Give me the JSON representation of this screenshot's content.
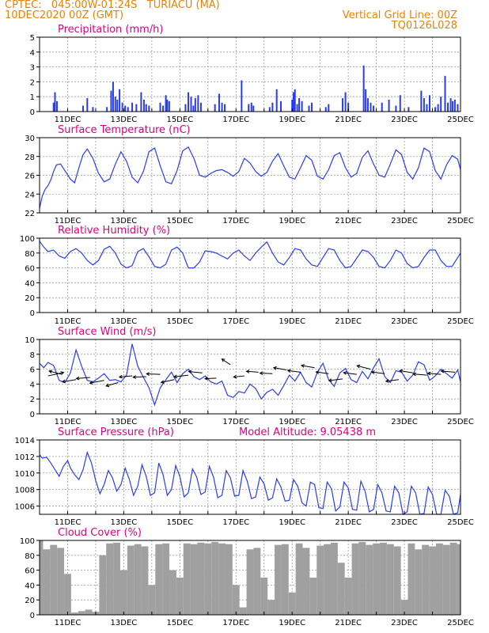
{
  "header": {
    "line1": "CPTEC:   045:00W-01:24S   TURIACU (MA)",
    "line2": "10DEC2020 00Z (GMT)",
    "grid_note": "Vertical Grid Line: 00Z",
    "model_id": "TQ0126L028"
  },
  "colors": {
    "header": "#f08000",
    "panel_title": "#e0007f",
    "series": "#2a3cf0",
    "cloud": "#a0a0a0",
    "grid": "#9a9a9a"
  },
  "x_axis": {
    "start_day": 10,
    "end_day": 25,
    "tick_labels": [
      "11DEC",
      "13DEC",
      "15DEC",
      "17DEC",
      "19DEC",
      "21DEC",
      "23DEC",
      "25DEC"
    ]
  },
  "chart_data": [
    {
      "type": "bar",
      "id": "precipitation",
      "title": "Precipitation (mm/h)",
      "ylim": [
        0,
        5
      ],
      "yticks": [
        0,
        1,
        2,
        3,
        4,
        5
      ],
      "x": [
        10.5,
        10.55,
        10.62,
        11.55,
        11.7,
        11.9,
        12.4,
        12.55,
        12.62,
        12.7,
        12.77,
        12.85,
        12.95,
        13.05,
        13.15,
        13.3,
        13.45,
        13.62,
        13.72,
        13.8,
        13.9,
        14.3,
        14.4,
        14.5,
        14.55,
        14.62,
        15.2,
        15.3,
        15.4,
        15.48,
        15.55,
        15.65,
        15.75,
        16.25,
        16.4,
        16.5,
        16.6,
        17.2,
        17.45,
        17.55,
        17.62,
        18.2,
        18.3,
        18.45,
        18.6,
        19.0,
        19.05,
        19.1,
        19.18,
        19.25,
        19.35,
        19.6,
        19.7,
        20.2,
        20.3,
        20.8,
        20.9,
        21.0,
        21.55,
        21.62,
        21.7,
        21.8,
        21.9,
        22.2,
        22.45,
        22.7,
        22.85,
        23.15,
        23.6,
        23.7,
        23.8,
        23.9,
        24.1,
        24.2,
        24.3,
        24.45,
        24.55,
        24.65,
        24.72,
        24.8,
        24.9
      ],
      "values": [
        0.6,
        1.3,
        0.7,
        0.4,
        0.9,
        0.3,
        0.3,
        1.4,
        2.0,
        1.0,
        0.8,
        1.5,
        0.6,
        0.4,
        0.3,
        0.6,
        0.5,
        1.3,
        0.8,
        0.5,
        0.4,
        0.6,
        0.4,
        1.1,
        0.8,
        0.7,
        0.5,
        1.3,
        1.0,
        0.4,
        0.9,
        1.1,
        0.6,
        0.5,
        1.2,
        0.6,
        0.5,
        2.1,
        0.5,
        0.6,
        0.4,
        0.3,
        0.6,
        1.5,
        0.7,
        0.8,
        1.3,
        1.5,
        0.5,
        0.9,
        0.7,
        0.4,
        0.6,
        0.3,
        0.5,
        0.9,
        1.3,
        0.6,
        3.1,
        1.5,
        0.9,
        0.6,
        0.4,
        0.6,
        0.8,
        0.4,
        1.1,
        0.3,
        1.4,
        0.9,
        0.5,
        1.1,
        0.3,
        0.5,
        1.0,
        2.4,
        0.6,
        0.9,
        0.7,
        0.8,
        0.5
      ]
    },
    {
      "type": "line",
      "id": "temperature",
      "title": "Surface Temperature (nC)",
      "ylim": [
        22,
        30
      ],
      "yticks": [
        22,
        24,
        26,
        28,
        30
      ],
      "x": [
        10.0,
        10.1,
        10.2,
        10.3,
        10.4,
        10.5,
        10.6,
        10.75,
        10.9,
        11.1,
        11.25,
        11.4,
        11.55,
        11.7,
        11.9,
        12.1,
        12.3,
        12.5,
        12.7,
        12.9,
        13.1,
        13.3,
        13.5,
        13.7,
        13.9,
        14.1,
        14.3,
        14.5,
        14.7,
        14.9,
        15.1,
        15.3,
        15.5,
        15.7,
        15.9,
        16.1,
        16.3,
        16.5,
        16.7,
        16.9,
        17.1,
        17.3,
        17.5,
        17.7,
        17.9,
        18.1,
        18.3,
        18.5,
        18.7,
        18.9,
        19.1,
        19.3,
        19.5,
        19.7,
        19.9,
        20.1,
        20.3,
        20.5,
        20.7,
        20.9,
        21.1,
        21.3,
        21.5,
        21.7,
        21.9,
        22.1,
        22.3,
        22.5,
        22.7,
        22.9,
        23.1,
        23.3,
        23.5,
        23.7,
        23.9,
        24.1,
        24.3,
        24.5,
        24.7,
        24.9,
        25.0
      ],
      "values": [
        22.5,
        23.8,
        24.5,
        24.9,
        25.5,
        26.4,
        27.1,
        27.2,
        26.5,
        25.6,
        25.2,
        26.8,
        28.2,
        28.8,
        27.8,
        26.2,
        25.3,
        25.6,
        27.2,
        28.5,
        27.5,
        25.8,
        25.2,
        26.4,
        28.5,
        28.9,
        27.0,
        25.3,
        25.1,
        26.5,
        28.6,
        29.0,
        27.8,
        26.0,
        25.8,
        26.2,
        26.5,
        26.6,
        26.3,
        25.9,
        26.4,
        27.8,
        27.3,
        26.4,
        25.9,
        26.3,
        27.5,
        28.3,
        27.0,
        25.8,
        25.6,
        26.8,
        28.1,
        27.6,
        25.9,
        25.6,
        26.6,
        28.1,
        28.4,
        26.8,
        25.8,
        26.2,
        27.9,
        28.6,
        27.2,
        26.0,
        25.8,
        27.2,
        28.7,
        28.2,
        26.3,
        25.6,
        26.8,
        28.9,
        28.5,
        26.5,
        25.6,
        27.1,
        28.1,
        27.7,
        26.6
      ]
    },
    {
      "type": "line",
      "id": "humidity",
      "title": "Relative Humidity (%)",
      "ylim": [
        0,
        100
      ],
      "yticks": [
        0,
        20,
        40,
        60,
        80,
        100
      ],
      "x": [
        10.0,
        10.15,
        10.3,
        10.5,
        10.7,
        10.9,
        11.1,
        11.3,
        11.5,
        11.7,
        11.9,
        12.1,
        12.3,
        12.5,
        12.7,
        12.9,
        13.1,
        13.3,
        13.5,
        13.7,
        13.9,
        14.1,
        14.3,
        14.5,
        14.7,
        14.9,
        15.1,
        15.3,
        15.5,
        15.7,
        15.9,
        16.1,
        16.3,
        16.5,
        16.7,
        16.9,
        17.1,
        17.3,
        17.5,
        17.7,
        17.9,
        18.1,
        18.3,
        18.5,
        18.7,
        18.9,
        19.1,
        19.3,
        19.5,
        19.7,
        19.9,
        20.1,
        20.3,
        20.5,
        20.7,
        20.9,
        21.1,
        21.3,
        21.5,
        21.7,
        21.9,
        22.1,
        22.3,
        22.5,
        22.7,
        22.9,
        23.1,
        23.3,
        23.5,
        23.7,
        23.9,
        24.1,
        24.3,
        24.5,
        24.7,
        24.9,
        25.0
      ],
      "values": [
        96,
        88,
        82,
        84,
        76,
        73,
        82,
        86,
        80,
        70,
        64,
        70,
        85,
        89,
        80,
        65,
        60,
        63,
        82,
        86,
        75,
        62,
        60,
        65,
        84,
        88,
        80,
        60,
        60,
        68,
        83,
        82,
        80,
        76,
        72,
        80,
        84,
        76,
        70,
        80,
        88,
        95,
        80,
        68,
        64,
        74,
        86,
        84,
        72,
        64,
        62,
        74,
        86,
        84,
        70,
        60,
        62,
        73,
        84,
        82,
        74,
        62,
        60,
        70,
        84,
        80,
        66,
        60,
        62,
        74,
        84,
        84,
        70,
        62,
        62,
        74,
        80
      ]
    },
    {
      "type": "line",
      "id": "wind",
      "title": "Surface Wind (m/s)",
      "ylim": [
        0,
        10
      ],
      "yticks": [
        0,
        2,
        4,
        6,
        8,
        10
      ],
      "x": [
        10.0,
        10.15,
        10.3,
        10.5,
        10.7,
        10.9,
        11.1,
        11.3,
        11.5,
        11.7,
        11.9,
        12.1,
        12.3,
        12.5,
        12.7,
        12.9,
        13.1,
        13.3,
        13.5,
        13.7,
        13.9,
        14.1,
        14.3,
        14.5,
        14.7,
        14.9,
        15.1,
        15.3,
        15.5,
        15.7,
        15.9,
        16.1,
        16.3,
        16.5,
        16.7,
        16.9,
        17.1,
        17.3,
        17.5,
        17.7,
        17.9,
        18.1,
        18.3,
        18.5,
        18.7,
        18.9,
        19.1,
        19.3,
        19.5,
        19.7,
        19.9,
        20.1,
        20.3,
        20.5,
        20.7,
        20.9,
        21.1,
        21.3,
        21.5,
        21.7,
        21.9,
        22.1,
        22.3,
        22.5,
        22.7,
        22.9,
        23.1,
        23.3,
        23.5,
        23.7,
        23.9,
        24.1,
        24.3,
        24.5,
        24.7,
        24.9,
        25.0
      ],
      "values": [
        6.8,
        6.2,
        6.9,
        6.5,
        4.5,
        4.2,
        5.5,
        8.6,
        6.4,
        4.5,
        4.3,
        4.8,
        5.4,
        4.5,
        4.6,
        4.3,
        5.2,
        9.4,
        6.4,
        4.9,
        3.5,
        1.2,
        3.5,
        4.6,
        5.6,
        4.2,
        5.4,
        6.0,
        5.0,
        4.6,
        5.1,
        4.3,
        4.0,
        4.4,
        2.5,
        2.2,
        3.0,
        2.8,
        4.0,
        3.4,
        2.0,
        2.9,
        3.3,
        2.5,
        3.8,
        5.2,
        4.4,
        5.6,
        4.2,
        3.6,
        5.6,
        6.8,
        4.6,
        3.7,
        5.5,
        6.1,
        4.6,
        4.2,
        5.7,
        4.7,
        6.2,
        7.4,
        5.0,
        4.2,
        5.8,
        5.6,
        4.4,
        5.2,
        7.0,
        6.6,
        4.5,
        5.1,
        6.0,
        5.4,
        4.8,
        5.9,
        4.3
      ],
      "arrows": {
        "x": [
          10.3,
          10.8,
          11.3,
          11.8,
          12.3,
          12.8,
          13.3,
          13.8,
          14.3,
          14.8,
          15.3,
          15.8,
          16.3,
          16.8,
          17.3,
          17.8,
          18.3,
          18.8,
          19.3,
          19.8,
          20.3,
          20.8,
          21.3,
          21.8,
          22.3,
          22.8,
          23.3,
          23.8,
          24.3,
          24.8
        ],
        "y": [
          5.1,
          5.3,
          4.6,
          4.9,
          4.5,
          4.2,
          5.1,
          5.0,
          5.3,
          4.6,
          5.2,
          5.5,
          4.8,
          6.6,
          5.1,
          5.6,
          5.4,
          5.9,
          5.6,
          6.2,
          5.4,
          4.7,
          5.3,
          6.0,
          5.4,
          4.6,
          5.5,
          5.2,
          5.3,
          5.6
        ],
        "u": [
          5.5,
          -4.5,
          -4.8,
          -4.8,
          -5.0,
          -4.2,
          -4.5,
          -4.6,
          -4.8,
          -4.6,
          -5.0,
          -4.8,
          -4.0,
          -3.0,
          -3.8,
          -4.2,
          -4.4,
          -4.5,
          -4.5,
          -4.6,
          -4.4,
          -4.8,
          -4.6,
          -4.8,
          -4.6,
          -4.5,
          -4.6,
          -4.8,
          -4.6,
          -4.8
        ],
        "v": [
          1.2,
          1.2,
          -0.8,
          -0.4,
          -1.0,
          -1.2,
          -0.4,
          -0.2,
          0.2,
          -1.0,
          -0.6,
          0.5,
          -0.2,
          2.0,
          -0.4,
          0.3,
          0.2,
          0.8,
          0.6,
          0.8,
          0.6,
          -0.6,
          0.6,
          1.2,
          0.6,
          -0.6,
          0.8,
          0.4,
          0.4,
          0.4
        ]
      }
    },
    {
      "type": "line",
      "id": "pressure",
      "title": "Surface Pressure (hPa)",
      "annotation": "Model Altitude: 9.05438 m",
      "ylim": [
        1005,
        1014
      ],
      "yticks": [
        1006,
        1008,
        1010,
        1012,
        1014
      ],
      "x": [
        10.0,
        10.1,
        10.25,
        10.4,
        10.55,
        10.7,
        10.85,
        11.0,
        11.1,
        11.25,
        11.4,
        11.55,
        11.7,
        11.85,
        12.0,
        12.15,
        12.3,
        12.45,
        12.6,
        12.75,
        12.9,
        13.05,
        13.2,
        13.35,
        13.5,
        13.65,
        13.8,
        13.95,
        14.1,
        14.25,
        14.4,
        14.55,
        14.7,
        14.85,
        15.0,
        15.15,
        15.3,
        15.45,
        15.6,
        15.75,
        15.9,
        16.05,
        16.2,
        16.35,
        16.5,
        16.65,
        16.8,
        16.95,
        17.1,
        17.25,
        17.4,
        17.55,
        17.7,
        17.85,
        18.0,
        18.15,
        18.3,
        18.45,
        18.6,
        18.75,
        18.9,
        19.05,
        19.2,
        19.35,
        19.5,
        19.65,
        19.8,
        19.95,
        20.1,
        20.25,
        20.4,
        20.55,
        20.7,
        20.85,
        21.0,
        21.15,
        21.3,
        21.45,
        21.6,
        21.75,
        21.9,
        22.05,
        22.2,
        22.35,
        22.5,
        22.65,
        22.8,
        22.95,
        23.1,
        23.25,
        23.4,
        23.55,
        23.7,
        23.85,
        24.0,
        24.15,
        24.3,
        24.45,
        24.6,
        24.75,
        24.9,
        25.0
      ],
      "values": [
        1012.2,
        1011.8,
        1011.9,
        1011.2,
        1010.4,
        1009.6,
        1010.8,
        1011.5,
        1010.6,
        1009.8,
        1009.2,
        1010.4,
        1012.5,
        1011.2,
        1009.1,
        1007.5,
        1008.6,
        1010.3,
        1009.4,
        1007.8,
        1008.6,
        1010.6,
        1009.2,
        1007.3,
        1008.4,
        1011.0,
        1009.6,
        1007.3,
        1007.6,
        1011.2,
        1009.8,
        1007.3,
        1008.0,
        1010.9,
        1009.6,
        1007.1,
        1007.6,
        1010.5,
        1009.5,
        1007.4,
        1007.7,
        1010.8,
        1009.5,
        1007.0,
        1007.3,
        1010.3,
        1009.4,
        1007.2,
        1007.3,
        1010.3,
        1009.0,
        1006.9,
        1007.1,
        1009.5,
        1008.7,
        1006.7,
        1007.0,
        1009.3,
        1008.3,
        1006.6,
        1006.7,
        1009.2,
        1008.4,
        1006.4,
        1006.0,
        1008.9,
        1008.6,
        1005.8,
        1005.7,
        1008.9,
        1008.1,
        1005.4,
        1005.9,
        1008.9,
        1008.2,
        1005.6,
        1005.5,
        1009.0,
        1007.8,
        1005.3,
        1005.6,
        1008.6,
        1007.6,
        1005.4,
        1005.3,
        1008.4,
        1007.6,
        1004.9,
        1005.3,
        1008.4,
        1007.6,
        1004.8,
        1005.1,
        1008.3,
        1007.4,
        1004.8,
        1004.9,
        1007.9,
        1007.2,
        1004.7,
        1005.2,
        1007.4
      ]
    },
    {
      "type": "bar",
      "id": "cloud",
      "title": "Cloud Cover (%)",
      "ylim": [
        0,
        100
      ],
      "yticks": [
        0,
        20,
        40,
        60,
        80,
        100
      ],
      "x": [
        10.0,
        10.25,
        10.5,
        10.75,
        11.0,
        11.25,
        11.5,
        11.75,
        12.0,
        12.25,
        12.5,
        12.75,
        13.0,
        13.25,
        13.5,
        13.75,
        14.0,
        14.25,
        14.5,
        14.75,
        15.0,
        15.25,
        15.5,
        15.75,
        16.0,
        16.25,
        16.5,
        16.75,
        17.0,
        17.25,
        17.5,
        17.75,
        18.0,
        18.25,
        18.5,
        18.75,
        19.0,
        19.25,
        19.5,
        19.75,
        20.0,
        20.25,
        20.5,
        20.75,
        21.0,
        21.25,
        21.5,
        21.75,
        22.0,
        22.25,
        22.5,
        22.75,
        23.0,
        23.25,
        23.5,
        23.75,
        24.0,
        24.25,
        24.5,
        24.75,
        25.0
      ],
      "values": [
        100,
        88,
        94,
        90,
        55,
        3,
        5,
        7,
        4,
        80,
        96,
        97,
        60,
        93,
        95,
        92,
        40,
        95,
        96,
        60,
        50,
        96,
        95,
        97,
        96,
        98,
        96,
        95,
        40,
        10,
        88,
        90,
        50,
        20,
        94,
        95,
        30,
        96,
        90,
        50,
        93,
        95,
        97,
        70,
        50,
        96,
        98,
        94,
        96,
        97,
        95,
        92,
        20,
        96,
        88,
        94,
        92,
        96,
        94,
        97,
        95
      ]
    }
  ]
}
